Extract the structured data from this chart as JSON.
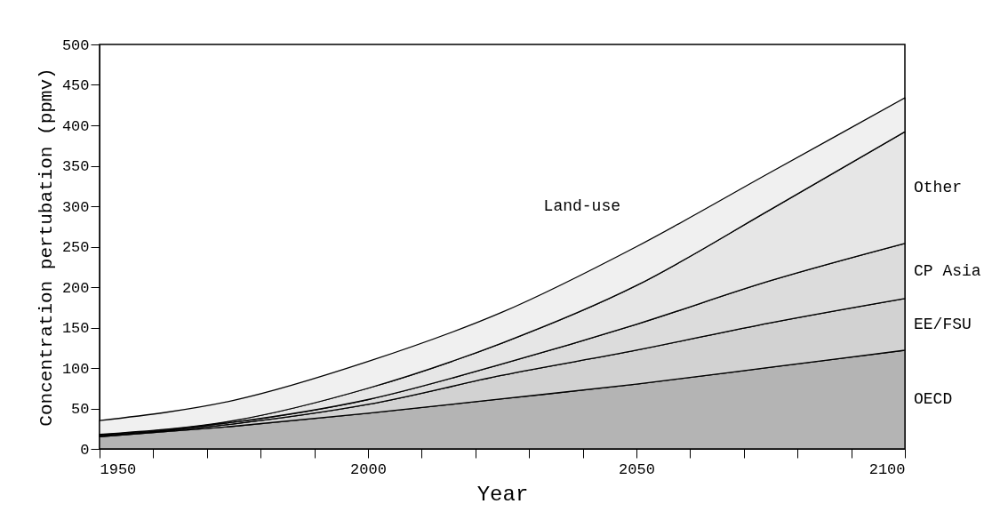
{
  "chart_data": {
    "type": "area",
    "stacked": true,
    "xlabel": "Year",
    "ylabel": "Concentration pertubation (ppmv)",
    "x": [
      1950,
      1975,
      2000,
      2025,
      2050,
      2075,
      2100
    ],
    "series": [
      {
        "name": "OECD",
        "color": "#b4b4b4",
        "values": [
          15,
          28,
          44,
          62,
          80,
          101,
          122
        ]
      },
      {
        "name": "EE/FSU",
        "color": "#d2d2d2",
        "values": [
          1,
          3,
          11,
          29,
          42,
          55,
          64
        ]
      },
      {
        "name": "CP Asia",
        "color": "#dcdcdc",
        "values": [
          1,
          2,
          6,
          14,
          32,
          52,
          68
        ]
      },
      {
        "name": "Other",
        "color": "#e6e6e6",
        "values": [
          1,
          2,
          14,
          26,
          48,
          88,
          138
        ]
      },
      {
        "name": "Land-use",
        "color": "#f0f0f0",
        "values": [
          17,
          25,
          33,
          38,
          48,
          46,
          42
        ]
      }
    ],
    "xlim": [
      1950,
      2100
    ],
    "xticks": [
      1950,
      {
        "value": 1960,
        "label": null
      },
      {
        "value": 1970,
        "label": null
      },
      {
        "value": 1980,
        "label": null
      },
      {
        "value": 1990,
        "label": null
      },
      2000,
      {
        "value": 2010,
        "label": null
      },
      {
        "value": 2020,
        "label": null
      },
      {
        "value": 2030,
        "label": null
      },
      {
        "value": 2040,
        "label": null
      },
      2050,
      {
        "value": 2060,
        "label": null
      },
      {
        "value": 2070,
        "label": null
      },
      {
        "value": 2080,
        "label": null
      },
      {
        "value": 2090,
        "label": null
      },
      2100
    ],
    "ylim": [
      0,
      500
    ],
    "yticks": [
      0,
      50,
      100,
      150,
      200,
      250,
      300,
      350,
      400,
      450,
      500
    ]
  }
}
